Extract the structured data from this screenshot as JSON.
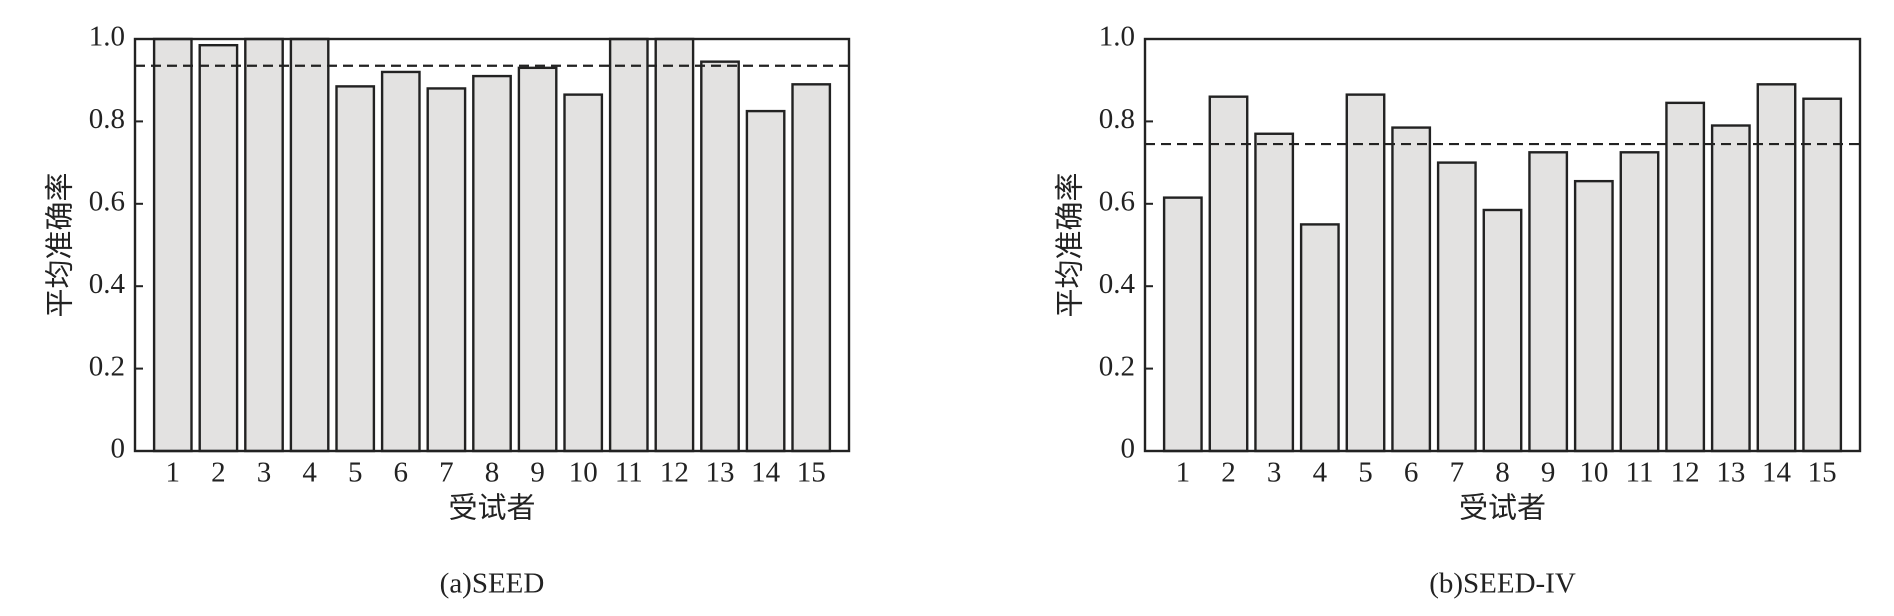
{
  "chart_data": [
    {
      "type": "bar",
      "caption": "(a)SEED",
      "xlabel": "受试者",
      "ylabel": "平均准确率",
      "categories": [
        "1",
        "2",
        "3",
        "4",
        "5",
        "6",
        "7",
        "8",
        "9",
        "10",
        "11",
        "12",
        "13",
        "14",
        "15"
      ],
      "values": [
        1.0,
        0.985,
        1.0,
        1.0,
        0.885,
        0.92,
        0.88,
        0.91,
        0.93,
        0.865,
        1.0,
        1.0,
        0.945,
        0.825,
        0.89
      ],
      "mean_line": 0.935,
      "color": "#e3e2e1",
      "ylim": [
        0,
        1
      ],
      "yticks": [
        0,
        0.2,
        0.4,
        0.6,
        0.8,
        {
          "value": 1,
          "label": "1.0"
        }
      ]
    },
    {
      "type": "bar",
      "caption": "(b)SEED-IV",
      "xlabel": "受试者",
      "ylabel": "平均准确率",
      "categories": [
        "1",
        "2",
        "3",
        "4",
        "5",
        "6",
        "7",
        "8",
        "9",
        "10",
        "11",
        "12",
        "13",
        "14",
        "15"
      ],
      "values": [
        0.615,
        0.86,
        0.77,
        0.55,
        0.865,
        0.785,
        0.7,
        0.585,
        0.725,
        0.655,
        0.725,
        0.845,
        0.79,
        0.89,
        0.855
      ],
      "mean_line": 0.745,
      "color": "#e3e2e1",
      "ylim": [
        0,
        1
      ],
      "yticks": [
        0,
        0.2,
        0.4,
        0.6,
        0.8,
        {
          "value": 1,
          "label": "1.0"
        }
      ]
    }
  ]
}
